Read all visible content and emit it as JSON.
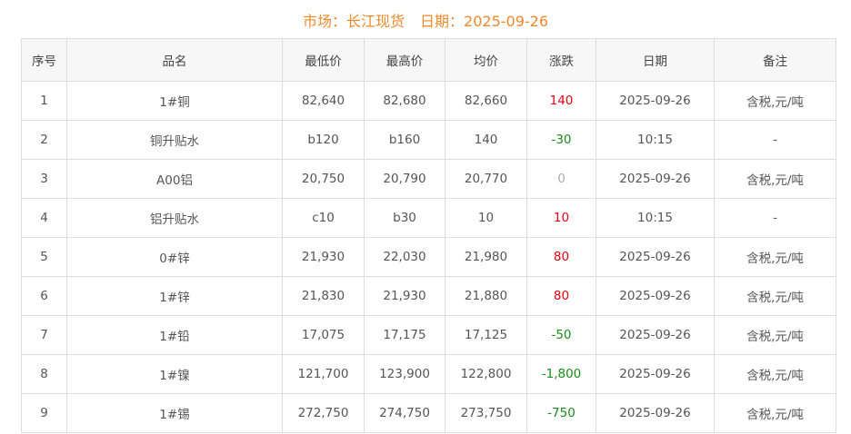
{
  "header": {
    "market_label": "市场：长江现货",
    "date_label": "日期：2025-09-26"
  },
  "colors": {
    "title": "#f0892a",
    "up": "#e60012",
    "down": "#1a8a1a",
    "flat": "#aaaaaa"
  },
  "table": {
    "columns": [
      "序号",
      "品名",
      "最低价",
      "最高价",
      "均价",
      "涨跌",
      "日期",
      "备注"
    ],
    "rows": [
      {
        "no": "1",
        "name": "1#铜",
        "low": "82,640",
        "high": "82,680",
        "avg": "82,660",
        "change": "140",
        "dir": "up",
        "date": "2025-09-26",
        "note": "含税,元/吨"
      },
      {
        "no": "2",
        "name": "铜升贴水",
        "low": "b120",
        "high": "b160",
        "avg": "140",
        "change": "-30",
        "dir": "down",
        "date": "10:15",
        "note": "-"
      },
      {
        "no": "3",
        "name": "A00铝",
        "low": "20,750",
        "high": "20,790",
        "avg": "20,770",
        "change": "0",
        "dir": "flat",
        "date": "2025-09-26",
        "note": "含税,元/吨"
      },
      {
        "no": "4",
        "name": "铝升贴水",
        "low": "c10",
        "high": "b30",
        "avg": "10",
        "change": "10",
        "dir": "up",
        "date": "10:15",
        "note": "-"
      },
      {
        "no": "5",
        "name": "0#锌",
        "low": "21,930",
        "high": "22,030",
        "avg": "21,980",
        "change": "80",
        "dir": "up",
        "date": "2025-09-26",
        "note": "含税,元/吨"
      },
      {
        "no": "6",
        "name": "1#锌",
        "low": "21,830",
        "high": "21,930",
        "avg": "21,880",
        "change": "80",
        "dir": "up",
        "date": "2025-09-26",
        "note": "含税,元/吨"
      },
      {
        "no": "7",
        "name": "1#铅",
        "low": "17,075",
        "high": "17,175",
        "avg": "17,125",
        "change": "-50",
        "dir": "down",
        "date": "2025-09-26",
        "note": "含税,元/吨"
      },
      {
        "no": "8",
        "name": "1#镍",
        "low": "121,700",
        "high": "123,900",
        "avg": "122,800",
        "change": "-1,800",
        "dir": "down",
        "date": "2025-09-26",
        "note": "含税,元/吨"
      },
      {
        "no": "9",
        "name": "1#锡",
        "low": "272,750",
        "high": "274,750",
        "avg": "273,750",
        "change": "-750",
        "dir": "down",
        "date": "2025-09-26",
        "note": "含税,元/吨"
      }
    ]
  }
}
